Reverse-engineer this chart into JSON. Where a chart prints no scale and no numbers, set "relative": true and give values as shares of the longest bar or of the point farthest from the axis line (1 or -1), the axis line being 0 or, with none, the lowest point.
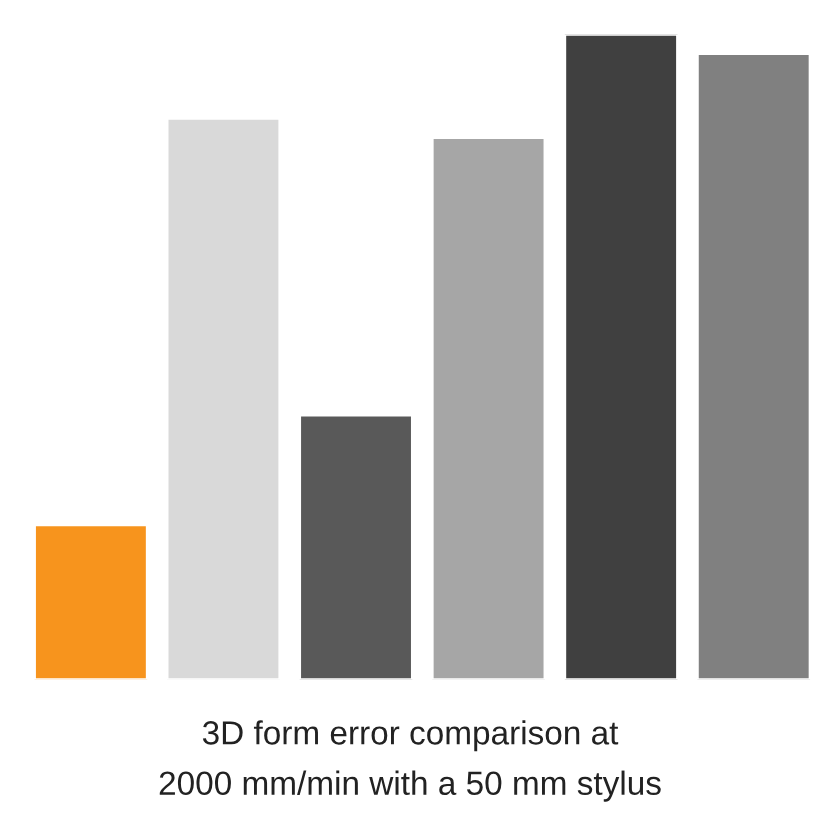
{
  "chart_data": {
    "type": "bar",
    "title": "3D form error comparison at\n2000 mm/min with a 50 mm stylus",
    "categories": [
      null,
      null,
      null,
      null,
      null,
      null
    ],
    "values": [
      0.24,
      0.87,
      0.41,
      0.84,
      1,
      0.97
    ],
    "colors": [
      "#f7941d",
      "#d9d9d9",
      "#595959",
      "#a6a6a6",
      "#404040",
      "#808080"
    ],
    "relative": true,
    "grid": false,
    "legend": false
  }
}
